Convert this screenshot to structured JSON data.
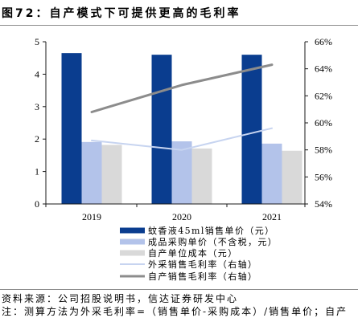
{
  "figure": {
    "title": "图72：自产模式下可提供更高的毛利率",
    "source": "资料来源：公司招股说明书，信达证券研发中心",
    "note": "注：测算方法为外采毛利率=（销售单价-采购成本）/销售单价；自产"
  },
  "chart_data": {
    "type": "bar",
    "categories": [
      "2019",
      "2020",
      "2021"
    ],
    "y_left": {
      "range": [
        0,
        5
      ],
      "ticks": [
        "0",
        "1",
        "2",
        "3",
        "4",
        "5"
      ]
    },
    "y_right": {
      "range": [
        54,
        66
      ],
      "ticks": [
        "54%",
        "56%",
        "58%",
        "60%",
        "62%",
        "64%",
        "66%"
      ]
    },
    "grid": false,
    "legend_placement": "bottom",
    "series": [
      {
        "name": "蚊香液45ml销售单价（元）",
        "type": "bar",
        "axis": "left",
        "color": "#0a3d8f",
        "values": [
          4.65,
          4.6,
          4.6
        ]
      },
      {
        "name": "成品采购单价（不含税，元）",
        "type": "bar",
        "axis": "left",
        "color": "#b3c3ea",
        "values": [
          1.91,
          1.93,
          1.86
        ]
      },
      {
        "name": "自产单位成本（元）",
        "type": "bar",
        "axis": "left",
        "color": "#d9d9d9",
        "values": [
          1.82,
          1.71,
          1.64
        ]
      },
      {
        "name": "外采销售毛利率（右轴）",
        "type": "line",
        "axis": "right",
        "color": "#c7d4f0",
        "values": [
          58.7,
          58.0,
          59.6
        ]
      },
      {
        "name": "自产销售毛利率（右轴）",
        "type": "line",
        "axis": "right",
        "color": "#8c8c8c",
        "values": [
          60.8,
          62.8,
          64.3
        ]
      }
    ]
  }
}
